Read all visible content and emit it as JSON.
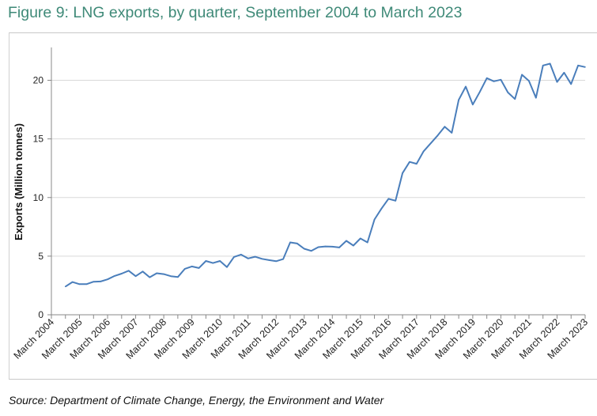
{
  "chart_data": {
    "type": "line",
    "title": "Figure 9: LNG exports, by quarter, September 2004 to March 2023",
    "xlabel": "",
    "ylabel": "Exports  (Million tonnes)",
    "ylim": [
      0,
      22.8
    ],
    "yticks": [
      0,
      5,
      10,
      15,
      20
    ],
    "grid": true,
    "x_tick_labels": [
      "March 2004",
      "March 2005",
      "March 2006",
      "March 2007",
      "March 2008",
      "March 2009",
      "March 2010",
      "March 2011",
      "March 2012",
      "March 2013",
      "March 2014",
      "March 2015",
      "March 2016",
      "March 2017",
      "March 2018",
      "March 2019",
      "March 2020",
      "March 2021",
      "March 2022",
      "March 2023"
    ],
    "x_start": "September 2004",
    "x_end": "March 2023",
    "series": [
      {
        "name": "LNG exports",
        "color": "#4a7ebb",
        "values": [
          2.41,
          2.79,
          2.61,
          2.61,
          2.82,
          2.84,
          3.02,
          3.31,
          3.51,
          3.76,
          3.29,
          3.69,
          3.2,
          3.54,
          3.47,
          3.29,
          3.22,
          3.92,
          4.12,
          3.99,
          4.59,
          4.41,
          4.59,
          4.07,
          4.93,
          5.13,
          4.8,
          4.95,
          4.77,
          4.66,
          4.57,
          4.75,
          6.17,
          6.08,
          5.63,
          5.45,
          5.77,
          5.83,
          5.81,
          5.74,
          6.31,
          5.9,
          6.51,
          6.17,
          8.13,
          9.05,
          9.89,
          9.73,
          12.09,
          13.04,
          12.88,
          13.94,
          14.62,
          15.29,
          16.04,
          15.52,
          18.33,
          19.46,
          17.93,
          19.01,
          20.18,
          19.91,
          20.05,
          18.96,
          18.4,
          20.47,
          19.95,
          18.51,
          21.26,
          21.42,
          19.86,
          20.65,
          19.68,
          21.26,
          21.13
        ]
      }
    ]
  },
  "source": "Source: Department of Climate Change, Energy, the Environment and Water"
}
